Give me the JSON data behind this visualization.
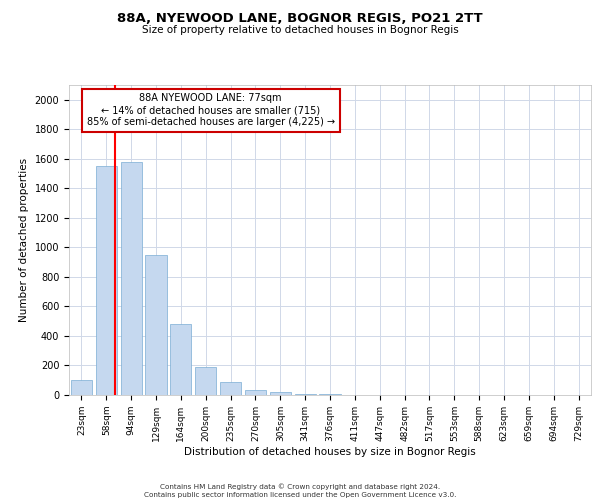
{
  "title1": "88A, NYEWOOD LANE, BOGNOR REGIS, PO21 2TT",
  "title2": "Size of property relative to detached houses in Bognor Regis",
  "xlabel": "Distribution of detached houses by size in Bognor Regis",
  "ylabel": "Number of detached properties",
  "categories": [
    "23sqm",
    "58sqm",
    "94sqm",
    "129sqm",
    "164sqm",
    "200sqm",
    "235sqm",
    "270sqm",
    "305sqm",
    "341sqm",
    "376sqm",
    "411sqm",
    "447sqm",
    "482sqm",
    "517sqm",
    "553sqm",
    "588sqm",
    "623sqm",
    "659sqm",
    "694sqm",
    "729sqm"
  ],
  "values": [
    100,
    1550,
    1580,
    950,
    480,
    190,
    85,
    35,
    20,
    10,
    5,
    2,
    1,
    0,
    0,
    0,
    0,
    0,
    0,
    0,
    0
  ],
  "bar_color": "#c5d8ef",
  "bar_edge_color": "#7aadd4",
  "red_line_x": 1.35,
  "annotation_text": "88A NYEWOOD LANE: 77sqm\n← 14% of detached houses are smaller (715)\n85% of semi-detached houses are larger (4,225) →",
  "annotation_box_color": "#ffffff",
  "annotation_box_edge_color": "#cc0000",
  "footer1": "Contains HM Land Registry data © Crown copyright and database right 2024.",
  "footer2": "Contains public sector information licensed under the Open Government Licence v3.0.",
  "ylim": [
    0,
    2100
  ],
  "yticks": [
    0,
    200,
    400,
    600,
    800,
    1000,
    1200,
    1400,
    1600,
    1800,
    2000
  ],
  "bg_color": "#ffffff",
  "grid_color": "#d0d8e8"
}
